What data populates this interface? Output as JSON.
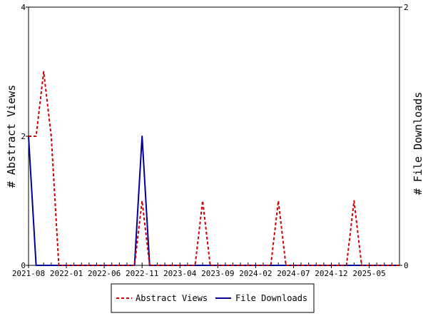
{
  "chart_data": {
    "type": "line",
    "ylabel_left": "# Abstract Views",
    "ylabel_right": "# File Downloads",
    "ylim_left": [
      0,
      4
    ],
    "ylim_right": [
      0,
      2
    ],
    "yticks_left": [
      "0",
      "2",
      "4"
    ],
    "yticks_right": [
      "0",
      "2"
    ],
    "xtick_labels": [
      "2021-08",
      "2022-01",
      "2022-06",
      "2022-11",
      "2023-04",
      "2023-09",
      "2024-02",
      "2024-07",
      "2024-12",
      "2025-05"
    ],
    "x": [
      "2021-08",
      "2021-09",
      "2021-10",
      "2021-11",
      "2021-12",
      "2022-01",
      "2022-02",
      "2022-03",
      "2022-04",
      "2022-05",
      "2022-06",
      "2022-07",
      "2022-08",
      "2022-09",
      "2022-10",
      "2022-11",
      "2022-12",
      "2023-01",
      "2023-02",
      "2023-03",
      "2023-04",
      "2023-05",
      "2023-06",
      "2023-07",
      "2023-08",
      "2023-09",
      "2023-10",
      "2023-11",
      "2023-12",
      "2024-01",
      "2024-02",
      "2024-03",
      "2024-04",
      "2024-05",
      "2024-06",
      "2024-07",
      "2024-08",
      "2024-09",
      "2024-10",
      "2024-11",
      "2024-12",
      "2025-01",
      "2025-02",
      "2025-03",
      "2025-04",
      "2025-05",
      "2025-06",
      "2025-07",
      "2025-08",
      "2025-09"
    ],
    "series": [
      {
        "name": "Abstract Views",
        "axis": "left",
        "color": "#cc0000",
        "dash": true,
        "values": [
          2,
          2,
          3,
          2,
          0,
          0,
          0,
          0,
          0,
          0,
          0,
          0,
          0,
          0,
          0,
          1,
          0,
          0,
          0,
          0,
          0,
          0,
          0,
          1,
          0,
          0,
          0,
          0,
          0,
          0,
          0,
          0,
          0,
          1,
          0,
          0,
          0,
          0,
          0,
          0,
          0,
          0,
          0,
          1,
          0,
          0,
          0,
          0,
          0,
          0
        ]
      },
      {
        "name": "File Downloads",
        "axis": "right",
        "color": "#000099",
        "dash": false,
        "values": [
          1,
          0,
          0,
          0,
          0,
          0,
          0,
          0,
          0,
          0,
          0,
          0,
          0,
          0,
          0,
          1,
          0,
          0,
          0,
          0,
          0,
          0,
          0,
          0,
          0,
          0,
          0,
          0,
          0,
          0,
          0,
          0,
          0,
          0,
          0,
          0,
          0,
          0,
          0,
          0,
          0,
          0,
          0,
          0,
          0,
          0,
          0,
          0,
          0,
          0
        ]
      }
    ],
    "legend": {
      "placement": "bottom-center",
      "entries": [
        "Abstract Views",
        "File Downloads"
      ]
    }
  }
}
